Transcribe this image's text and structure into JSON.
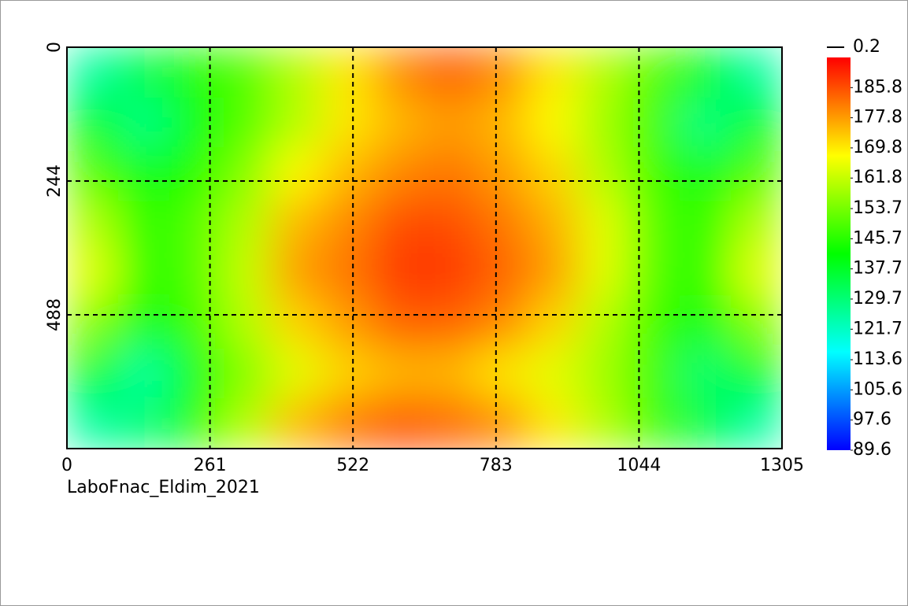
{
  "chart_data": {
    "type": "heatmap",
    "caption": "LaboFnac_Eldim_2021",
    "xlim": [
      0,
      1305
    ],
    "xticks": [
      0,
      261,
      522,
      783,
      1044,
      1305
    ],
    "ylim": [
      0,
      732
    ],
    "yticks": [
      0,
      244,
      488
    ],
    "grid": true,
    "values": [
      [
        125,
        135,
        145,
        150,
        160,
        170,
        180,
        185,
        180,
        170,
        160,
        150,
        140,
        125
      ],
      [
        140,
        128,
        140,
        150,
        160,
        170,
        175,
        178,
        175,
        168,
        158,
        148,
        128,
        140
      ],
      [
        150,
        140,
        145,
        155,
        168,
        175,
        180,
        182,
        178,
        172,
        160,
        148,
        140,
        150
      ],
      [
        160,
        145,
        150,
        160,
        175,
        180,
        186,
        186,
        182,
        176,
        165,
        150,
        145,
        160
      ],
      [
        165,
        145,
        150,
        162,
        178,
        182,
        188,
        188,
        184,
        178,
        165,
        150,
        145,
        165
      ],
      [
        155,
        140,
        148,
        160,
        172,
        178,
        184,
        184,
        180,
        172,
        160,
        148,
        140,
        155
      ],
      [
        140,
        125,
        140,
        155,
        165,
        172,
        175,
        175,
        170,
        165,
        158,
        148,
        130,
        140
      ],
      [
        125,
        130,
        145,
        160,
        175,
        182,
        186,
        184,
        180,
        170,
        160,
        148,
        135,
        125
      ]
    ],
    "colormap": [
      "#0000ff",
      "#00ffff",
      "#00ff00",
      "#ffff00",
      "#ff0000"
    ],
    "clim": [
      89.6,
      193.8
    ],
    "colorbar_ticks": [
      185.8,
      177.8,
      169.8,
      161.8,
      153.7,
      145.7,
      137.7,
      129.7,
      121.7,
      113.6,
      105.6,
      97.6,
      89.6
    ],
    "contour_step": 0.2
  }
}
